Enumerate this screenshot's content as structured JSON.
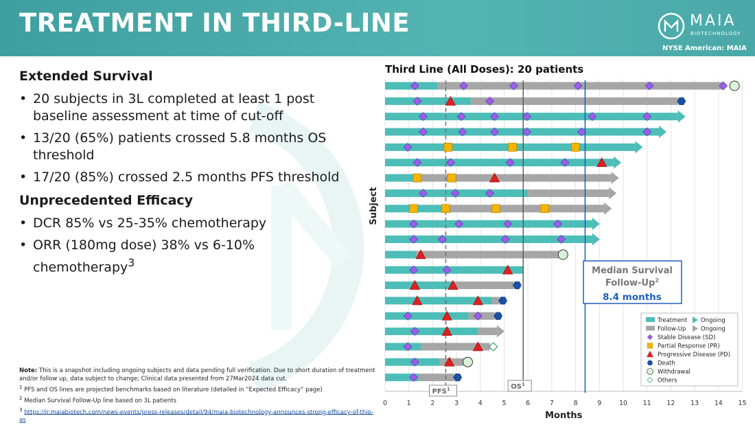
{
  "header": {
    "title": "TREATMENT IN THIRD-LINE"
  },
  "brand": {
    "name": "MAIA",
    "sub": "BIOTECHNOLOGY",
    "exchange": "NYSE American: MAIA",
    "color": "#ffffff"
  },
  "left": {
    "section1_title": "Extended Survival",
    "section1_bullets": [
      "20 subjects in 3L completed at least 1 post baseline assessment at time of cut-off",
      "13/20 (65%) patients crossed 5.8 months OS threshold",
      "17/20 (85%) crossed 2.5 months PFS threshold"
    ],
    "section2_title": "Unprecedented Efficacy",
    "section2_bullet1": "DCR 85% vs 25-35% chemotherapy",
    "section2_bullet2": "ORR (180mg dose) 38% vs 6-10% chemotherapy",
    "section2_bullet2_sup": "3"
  },
  "notes": {
    "label": "Note:",
    "text": "This is a snapshot including ongoing subjects and data pending full verification. Due to short duration of treatment and/or follow up, data subject to change; Clinical data presented from 27Mar2024 data cut.",
    "fn1_num": "1",
    "fn1": "PFS and OS lines are projected benchmarks based on literature (detailed in “Expected Efficacy” page)",
    "fn2_num": "2",
    "fn2": "Median Survival Follow-Up line based on 3L patients",
    "fn3_num": "3",
    "fn3": "https://ir.maiabiotech.com/news-events/press-releases/detail/94/maia-biotechnology-announces-strong-efficacy-of-thio-as"
  },
  "colors": {
    "treatment": "#4dbdb8",
    "followup": "#a6a6a6",
    "sd": "#9a5ee8",
    "pr": "#f4b400",
    "pd": "#e02020",
    "death": "#1b4fa0",
    "withdrawal": "#d9f2d9",
    "median": "#1f5fbf"
  },
  "chart_data": {
    "type": "swimmer",
    "title": "Third Line (All Doses): 20 patients",
    "xlabel": "Months",
    "ylabel": "Subject",
    "xlim": [
      0,
      15
    ],
    "xticks": [
      "0",
      "1",
      "2",
      "3",
      "4",
      "5",
      "6",
      "7",
      "8",
      "9",
      "10",
      "11",
      "12",
      "13",
      "14",
      "15"
    ],
    "pfs_line": {
      "x": 2.55,
      "label": "PFS",
      "sup": "1"
    },
    "os_line": {
      "x": 5.8,
      "label": "OS",
      "sup": "1"
    },
    "median_line": {
      "x": 8.4,
      "label_line1": "Median Survival",
      "label_line2": "Follow-Up",
      "sup": "2",
      "value": "8.4 months"
    },
    "legend": [
      {
        "key": "treatment",
        "label": "Treatment"
      },
      {
        "key": "ongoing_t",
        "label": "Ongoing"
      },
      {
        "key": "followup",
        "label": "Follow-Up"
      },
      {
        "key": "ongoing_f",
        "label": "Ongoing"
      },
      {
        "key": "sd",
        "label": "Stable Disease (SD)"
      },
      {
        "key": "pr",
        "label": "Partial Response (PR)"
      },
      {
        "key": "pd",
        "label": "Progressive Disease (PD)"
      },
      {
        "key": "death",
        "label": "Death"
      },
      {
        "key": "withdrawal",
        "label": "Withdrawal"
      },
      {
        "key": "others",
        "label": "Others"
      }
    ],
    "patients": [
      {
        "t": 2.2,
        "f": 14.2,
        "ongoing": null,
        "end": "withdrawal",
        "end_x": 14.5,
        "events": [
          {
            "k": "sd",
            "x": 1.25
          },
          {
            "k": "sd",
            "x": 3.3
          },
          {
            "k": "sd",
            "x": 5.4
          },
          {
            "k": "sd",
            "x": 8.1
          },
          {
            "k": "sd",
            "x": 11.1
          },
          {
            "k": "sd",
            "x": 14.2
          }
        ]
      },
      {
        "t": 3.6,
        "f": 12.3,
        "ongoing": null,
        "end": "death",
        "end_x": 12.3,
        "events": [
          {
            "k": "sd",
            "x": 1.35
          },
          {
            "k": "pd",
            "x": 2.75
          },
          {
            "k": "sd",
            "x": 4.4
          }
        ]
      },
      {
        "t": 12.3,
        "f": null,
        "ongoing": "t",
        "end": null,
        "end_x": null,
        "events": [
          {
            "k": "sd",
            "x": 1.6
          },
          {
            "k": "sd",
            "x": 3.2
          },
          {
            "k": "sd",
            "x": 4.6
          },
          {
            "k": "sd",
            "x": 5.95
          },
          {
            "k": "sd",
            "x": 8.7
          },
          {
            "k": "sd",
            "x": 11.0
          }
        ]
      },
      {
        "t": 11.5,
        "f": null,
        "ongoing": "t",
        "end": null,
        "end_x": null,
        "events": [
          {
            "k": "sd",
            "x": 1.6
          },
          {
            "k": "sd",
            "x": 3.25
          },
          {
            "k": "sd",
            "x": 4.6
          },
          {
            "k": "sd",
            "x": 5.95
          },
          {
            "k": "sd",
            "x": 8.25
          },
          {
            "k": "sd",
            "x": 11.0
          }
        ]
      },
      {
        "t": 10.5,
        "f": null,
        "ongoing": "t",
        "end": null,
        "end_x": null,
        "events": [
          {
            "k": "sd",
            "x": 0.95
          },
          {
            "k": "pr",
            "x": 2.65
          },
          {
            "k": "pr",
            "x": 5.35
          },
          {
            "k": "pr",
            "x": 8.0
          }
        ]
      },
      {
        "t": 9.6,
        "f": null,
        "ongoing": "t",
        "end": null,
        "end_x": null,
        "events": [
          {
            "k": "sd",
            "x": 1.35
          },
          {
            "k": "sd",
            "x": 2.75
          },
          {
            "k": "sd",
            "x": 5.25
          },
          {
            "k": "sd",
            "x": 7.55
          },
          {
            "k": "pd",
            "x": 9.1
          }
        ]
      },
      {
        "t": 1.3,
        "f": 9.5,
        "ongoing": "f",
        "end": null,
        "end_x": null,
        "events": [
          {
            "k": "pr",
            "x": 1.35
          },
          {
            "k": "pr",
            "x": 2.8
          },
          {
            "k": "pd",
            "x": 4.6
          }
        ]
      },
      {
        "t": 6.0,
        "f": 9.4,
        "ongoing": "f",
        "end": null,
        "end_x": null,
        "events": [
          {
            "k": "sd",
            "x": 1.6
          },
          {
            "k": "sd",
            "x": 2.95
          },
          {
            "k": "sd",
            "x": 4.4
          }
        ]
      },
      {
        "t": 2.4,
        "f": 9.2,
        "ongoing": "f",
        "end": null,
        "end_x": null,
        "events": [
          {
            "k": "pr",
            "x": 1.2
          },
          {
            "k": "pr",
            "x": 2.55
          },
          {
            "k": "pr",
            "x": 4.65
          },
          {
            "k": "pr",
            "x": 6.7
          }
        ]
      },
      {
        "t": 8.7,
        "f": null,
        "ongoing": "t",
        "end": null,
        "end_x": null,
        "events": [
          {
            "k": "sd",
            "x": 1.2
          },
          {
            "k": "sd",
            "x": 3.1
          },
          {
            "k": "sd",
            "x": 5.15
          },
          {
            "k": "sd",
            "x": 7.25
          }
        ]
      },
      {
        "t": 8.7,
        "f": null,
        "ongoing": "t",
        "end": null,
        "end_x": null,
        "events": [
          {
            "k": "sd",
            "x": 1.2
          },
          {
            "k": "sd",
            "x": 2.4
          },
          {
            "k": "sd",
            "x": 5.05
          },
          {
            "k": "sd",
            "x": 7.4
          }
        ]
      },
      {
        "t": 1.3,
        "f": 7.3,
        "ongoing": null,
        "end": "withdrawal",
        "end_x": 7.3,
        "events": [
          {
            "k": "pd",
            "x": 1.5
          }
        ]
      },
      {
        "t": 5.8,
        "f": null,
        "ongoing": null,
        "end": null,
        "end_x": null,
        "events": [
          {
            "k": "sd",
            "x": 1.2
          },
          {
            "k": "sd",
            "x": 2.6
          },
          {
            "k": "pd",
            "x": 5.15
          }
        ]
      },
      {
        "t": 2.9,
        "f": 5.4,
        "ongoing": null,
        "end": "death",
        "end_x": 5.4,
        "events": [
          {
            "k": "pd",
            "x": 1.25
          },
          {
            "k": "pd",
            "x": 2.85
          }
        ]
      },
      {
        "t": 4.5,
        "f": 4.8,
        "ongoing": null,
        "end": "death",
        "end_x": 4.8,
        "events": [
          {
            "k": "pd",
            "x": 1.35
          },
          {
            "k": "pd",
            "x": 3.9
          }
        ]
      },
      {
        "t": 3.5,
        "f": 4.6,
        "ongoing": null,
        "end": "death",
        "end_x": 4.6,
        "events": [
          {
            "k": "sd",
            "x": 0.95
          },
          {
            "k": "pd",
            "x": 2.6
          },
          {
            "k": "sd",
            "x": 3.9
          }
        ]
      },
      {
        "t": 3.9,
        "f": 4.7,
        "ongoing": "f",
        "end": null,
        "end_x": null,
        "events": [
          {
            "k": "sd",
            "x": 1.25
          },
          {
            "k": "pd",
            "x": 2.6
          }
        ]
      },
      {
        "t": 1.5,
        "f": 4.4,
        "ongoing": null,
        "end": "others",
        "end_x": 4.4,
        "events": [
          {
            "k": "sd",
            "x": 0.95
          },
          {
            "k": "pd",
            "x": 3.9
          }
        ]
      },
      {
        "t": 2.3,
        "f": 3.3,
        "ongoing": null,
        "end": "withdrawal",
        "end_x": 3.3,
        "events": [
          {
            "k": "sd",
            "x": 1.25
          },
          {
            "k": "pd",
            "x": 2.7
          }
        ]
      },
      {
        "t": 1.4,
        "f": 2.9,
        "ongoing": null,
        "end": "death",
        "end_x": 2.9,
        "events": [
          {
            "k": "sd",
            "x": 1.2
          }
        ]
      }
    ]
  }
}
